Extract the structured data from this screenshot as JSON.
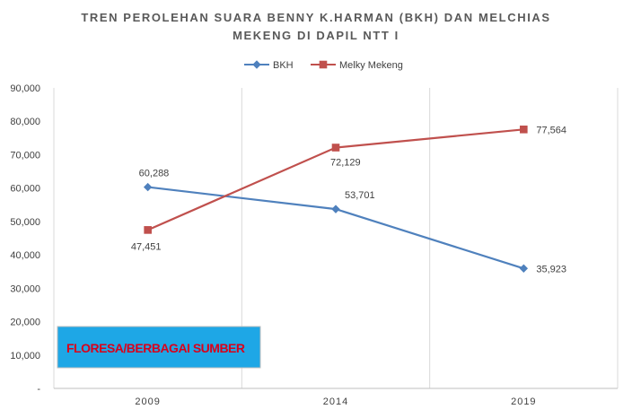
{
  "chart_data": {
    "type": "line",
    "title_lines": [
      "TREN PEROLEHAN SUARA BENNY K.HARMAN (BKH)  DAN MELCHIAS",
      "MEKENG DI DAPIL NTT I"
    ],
    "categories": [
      "2009",
      "2014",
      "2019"
    ],
    "series": [
      {
        "name": "BKH",
        "values": [
          60288,
          53701,
          35923
        ],
        "labels": [
          "60,288",
          "53,701",
          "35,923"
        ],
        "color": "#4f81bd",
        "marker": "diamond"
      },
      {
        "name": "Melky Mekeng",
        "values": [
          47451,
          72129,
          77564
        ],
        "labels": [
          "47,451",
          "72,129",
          "77,564"
        ],
        "color": "#c0504d",
        "marker": "square"
      }
    ],
    "ylim": [
      0,
      90000
    ],
    "ytick_labels": [
      "-",
      "10,000",
      "20,000",
      "30,000",
      "40,000",
      "50,000",
      "60,000",
      "70,000",
      "80,000",
      "90,000"
    ],
    "grid": "vertical",
    "legend_position": "top",
    "annotation": "FLORESA/BERBAGAI SUMBER",
    "annotation_bg": "#1ea7e6"
  }
}
